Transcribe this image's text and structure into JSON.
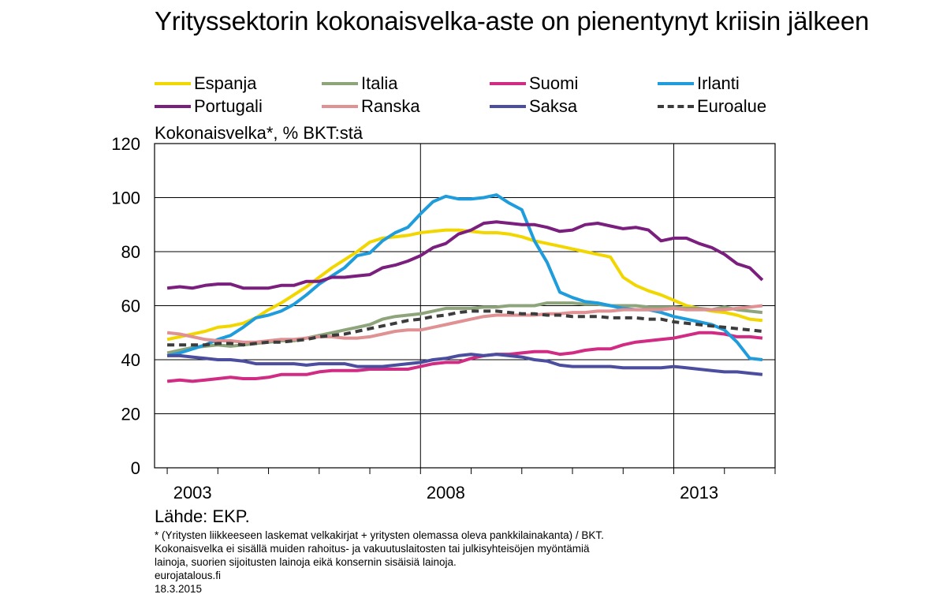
{
  "title": "Yrityssektorin kokonaisvelka-aste on pienentynyt kriisin jälkeen",
  "unit_label": "Kokonaisvelka*, % BKT:stä",
  "source": "Lähde: EKP.",
  "footnote": [
    "* (Yritysten liikkeeseen laskemat velkakirjat + yritysten olemassa oleva pankkilainakanta) / BKT.",
    "Kokonaisvelka ei sisällä muiden rahoitus- ja vakuutuslaitosten tai julkisyhteisöjen myöntämiä",
    "lainoja, suorien sijoitusten lainoja eikä konsernin sisäisiä lainoja.",
    "eurojatalous.fi",
    "18.3.2015"
  ],
  "chart_data": {
    "type": "line",
    "title": "Yrityssektorin kokonaisvelka-aste on pienentynyt kriisin jälkeen",
    "ylabel": "Kokonaisvelka*, % BKT:stä",
    "xlim": [
      2002.75,
      2015.0
    ],
    "ylim": [
      0,
      120
    ],
    "y_ticks": [
      0,
      20,
      40,
      60,
      80,
      100,
      120
    ],
    "x_tick_labels": [
      {
        "label": "2003",
        "x": 2003.5
      },
      {
        "label": "2008",
        "x": 2008.5
      },
      {
        "label": "2013",
        "x": 2013.5
      }
    ],
    "grid": true,
    "x": [
      2003.0,
      2003.25,
      2003.5,
      2003.75,
      2004.0,
      2004.25,
      2004.5,
      2004.75,
      2005.0,
      2005.25,
      2005.5,
      2005.75,
      2006.0,
      2006.25,
      2006.5,
      2006.75,
      2007.0,
      2007.25,
      2007.5,
      2007.75,
      2008.0,
      2008.25,
      2008.5,
      2008.75,
      2009.0,
      2009.25,
      2009.5,
      2009.75,
      2010.0,
      2010.25,
      2010.5,
      2010.75,
      2011.0,
      2011.25,
      2011.5,
      2011.75,
      2012.0,
      2012.25,
      2012.5,
      2012.75,
      2013.0,
      2013.25,
      2013.5,
      2013.75,
      2014.0,
      2014.25,
      2014.5,
      2014.75
    ],
    "series": [
      {
        "name": "Espanja",
        "color": "#f2d600",
        "dashed": false,
        "values": [
          47.5,
          48.5,
          49.5,
          50.5,
          52,
          52.5,
          53.5,
          55.5,
          58.5,
          61,
          64,
          67,
          70.5,
          74,
          77,
          80,
          83.5,
          85,
          85.5,
          86,
          87,
          87.5,
          88,
          88,
          87.5,
          87,
          87,
          86.5,
          85.5,
          84,
          83,
          82,
          81,
          80,
          79,
          78,
          70.5,
          67.5,
          65.5,
          64,
          62,
          60,
          59,
          58,
          57.5,
          56.5,
          55,
          54.5
        ]
      },
      {
        "name": "Italia",
        "color": "#8ea47b",
        "dashed": false,
        "values": [
          42.5,
          43.5,
          44.5,
          45,
          45.5,
          45,
          45.5,
          46,
          46.5,
          47,
          47,
          48,
          49,
          50,
          51,
          52,
          53,
          55,
          56,
          56.5,
          57,
          58,
          59,
          59,
          59,
          59.5,
          59.5,
          60,
          60,
          60,
          61,
          61,
          61,
          60.5,
          60.5,
          60,
          60,
          60,
          59.5,
          59.5,
          59.5,
          59,
          59,
          58.5,
          59.5,
          58.5,
          58,
          57.5
        ]
      },
      {
        "name": "Suomi",
        "color": "#d12c84",
        "dashed": false,
        "values": [
          32,
          32.5,
          32,
          32.5,
          33,
          33.5,
          33,
          33,
          33.5,
          34.5,
          34.5,
          34.5,
          35.5,
          36,
          36,
          36,
          36.5,
          36.5,
          36.5,
          36.5,
          37.5,
          38.5,
          39,
          39,
          40.5,
          41.5,
          42,
          42,
          42.5,
          43,
          43,
          42,
          42.5,
          43.5,
          44,
          44,
          45.5,
          46.5,
          47,
          47.5,
          48,
          49,
          50,
          50,
          49.5,
          48.5,
          48.5,
          48
        ]
      },
      {
        "name": "Irlanti",
        "color": "#1e9cdb",
        "dashed": false,
        "values": [
          41.5,
          42.5,
          44,
          45.5,
          47.5,
          49,
          52,
          55.5,
          56.5,
          58,
          60.5,
          64,
          68,
          71,
          74,
          78.5,
          79.5,
          84,
          87,
          89,
          94,
          98.5,
          100.5,
          99.5,
          99.5,
          100,
          101,
          98,
          95.5,
          84,
          76,
          65,
          63,
          61.5,
          61,
          60,
          59,
          58.5,
          58.5,
          57.5,
          56,
          55,
          54,
          53,
          51,
          46.5,
          40.5,
          40
        ]
      },
      {
        "name": "Portugali",
        "color": "#7b1f7f",
        "dashed": false,
        "values": [
          66.5,
          67,
          66.5,
          67.5,
          68,
          68,
          66.5,
          66.5,
          66.5,
          67.5,
          67.5,
          69,
          69,
          70.5,
          70.5,
          71,
          71.5,
          74,
          75,
          76.5,
          78.5,
          81.5,
          83,
          86.5,
          88,
          90.5,
          91,
          90.5,
          90,
          90,
          89,
          87.5,
          88,
          90,
          90.5,
          89.5,
          88.5,
          89,
          88,
          84,
          85,
          85,
          83,
          81.5,
          79,
          75.5,
          74,
          69.5
        ]
      },
      {
        "name": "Ranska",
        "color": "#df9193",
        "dashed": false,
        "values": [
          50,
          49.5,
          48.5,
          47.5,
          47,
          47,
          46.5,
          46.5,
          47,
          47.5,
          47.5,
          48,
          48.5,
          48.5,
          48,
          48,
          48.5,
          49.5,
          50.5,
          51,
          51,
          52,
          53,
          54,
          55,
          56,
          56.5,
          56.5,
          56.5,
          56.5,
          57,
          57,
          57.5,
          57.5,
          58,
          58,
          58.5,
          58.5,
          58.5,
          58.5,
          59,
          58.5,
          58.5,
          58.5,
          58.5,
          59,
          59.5,
          60
        ]
      },
      {
        "name": "Saksa",
        "color": "#4b4e9f",
        "dashed": false,
        "values": [
          41.5,
          41.5,
          41,
          40.5,
          40,
          40,
          39.5,
          38.5,
          38.5,
          38.5,
          38.5,
          38,
          38.5,
          38.5,
          38.5,
          37.5,
          37.5,
          37.5,
          38,
          38.5,
          39,
          40,
          40.5,
          41.5,
          42,
          41.5,
          42,
          41.5,
          41,
          40,
          39.5,
          38,
          37.5,
          37.5,
          37.5,
          37.5,
          37,
          37,
          37,
          37,
          37.5,
          37,
          36.5,
          36,
          35.5,
          35.5,
          35,
          34.5
        ]
      },
      {
        "name": "Euroalue",
        "color": "#3c3c3c",
        "dashed": true,
        "values": [
          45.5,
          45.5,
          45.5,
          45.5,
          46,
          46,
          45.5,
          46,
          46.5,
          46.5,
          47,
          47.5,
          48.5,
          49,
          49.5,
          50.5,
          51.5,
          52.5,
          53.5,
          54.5,
          55,
          56,
          56.5,
          57.5,
          58,
          58,
          58,
          57.5,
          57,
          57,
          56.5,
          56.5,
          56,
          56,
          56,
          55.5,
          55.5,
          55.5,
          55,
          55,
          54,
          53.5,
          53,
          52.5,
          52,
          51.5,
          51,
          50.5
        ]
      }
    ]
  }
}
